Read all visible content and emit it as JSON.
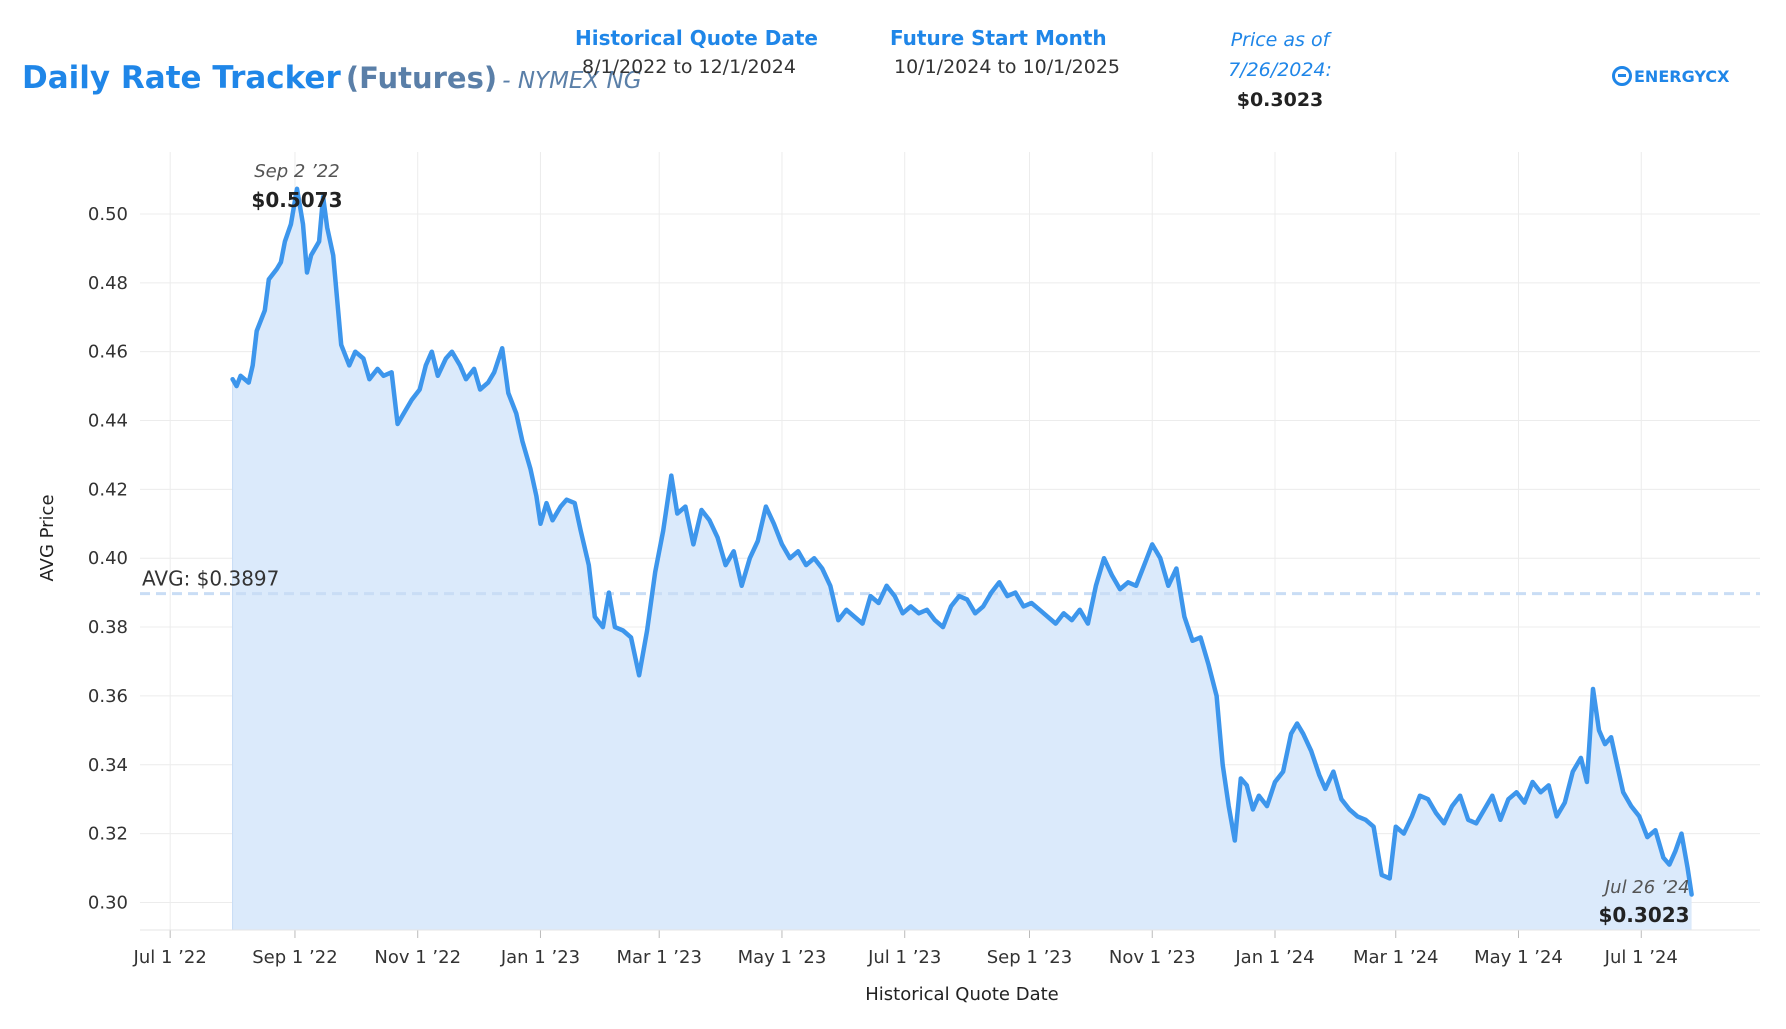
{
  "header": {
    "title_main": "Daily Rate Tracker",
    "title_sub": "(Futures)",
    "title_tail": "- NYMEX NG",
    "historical_label": "Historical Quote Date",
    "historical_value": "8/1/2022 to 12/1/2024",
    "future_label": "Future Start Month",
    "future_value": "10/1/2024 to 10/1/2025",
    "price_label_line1": "Price as of",
    "price_label_line2": "7/26/2024:",
    "price_value": "$0.3023",
    "logo_text": "ENERGYCX"
  },
  "colors": {
    "line": "#3d96ec",
    "area": "#dbeafb",
    "avg_line": "#c9ddf5",
    "accent": "#1f86e8"
  },
  "chart_data": {
    "type": "area",
    "xlabel": "Historical Quote Date",
    "ylabel": "AVG Price",
    "x_ticks": [
      {
        "date": "2022-07-01",
        "label": "Jul 1 ’22"
      },
      {
        "date": "2022-09-01",
        "label": "Sep 1 ’22"
      },
      {
        "date": "2022-11-01",
        "label": "Nov 1 ’22"
      },
      {
        "date": "2023-01-01",
        "label": "Jan 1 ’23"
      },
      {
        "date": "2023-03-01",
        "label": "Mar 1 ’23"
      },
      {
        "date": "2023-05-01",
        "label": "May 1 ’23"
      },
      {
        "date": "2023-07-01",
        "label": "Jul 1 ’23"
      },
      {
        "date": "2023-09-01",
        "label": "Sep 1 ’23"
      },
      {
        "date": "2023-11-01",
        "label": "Nov 1 ’23"
      },
      {
        "date": "2024-01-01",
        "label": "Jan 1 ’24"
      },
      {
        "date": "2024-03-01",
        "label": "Mar 1 ’24"
      },
      {
        "date": "2024-05-01",
        "label": "May 1 ’24"
      },
      {
        "date": "2024-07-01",
        "label": "Jul 1 ’24"
      }
    ],
    "xlim": [
      "2022-06-16",
      "2024-08-29"
    ],
    "y_ticks": [
      0.3,
      0.32,
      0.34,
      0.36,
      0.38,
      0.4,
      0.42,
      0.44,
      0.46,
      0.48,
      0.5
    ],
    "y_tick_labels": [
      "0.30",
      "0.32",
      "0.34",
      "0.36",
      "0.38",
      "0.40",
      "0.42",
      "0.44",
      "0.46",
      "0.48",
      "0.50"
    ],
    "ylim": [
      0.292,
      0.518
    ],
    "avg": {
      "value": 0.3897,
      "label": "AVG: $0.3897"
    },
    "grid": true,
    "max_annotation": {
      "date": "2022-09-02",
      "date_label": "Sep 2 ’22",
      "value_label": "$0.5073"
    },
    "last_annotation": {
      "date": "2024-07-26",
      "date_label": "Jul 26 ’24",
      "value_label": "$0.3023"
    },
    "points": [
      [
        "2022-08-01",
        0.452
      ],
      [
        "2022-08-03",
        0.45
      ],
      [
        "2022-08-05",
        0.453
      ],
      [
        "2022-08-09",
        0.451
      ],
      [
        "2022-08-11",
        0.456
      ],
      [
        "2022-08-13",
        0.466
      ],
      [
        "2022-08-17",
        0.472
      ],
      [
        "2022-08-19",
        0.481
      ],
      [
        "2022-08-23",
        0.484
      ],
      [
        "2022-08-25",
        0.486
      ],
      [
        "2022-08-27",
        0.492
      ],
      [
        "2022-08-30",
        0.497
      ],
      [
        "2022-09-02",
        0.5073
      ],
      [
        "2022-09-05",
        0.497
      ],
      [
        "2022-09-07",
        0.483
      ],
      [
        "2022-09-09",
        0.488
      ],
      [
        "2022-09-13",
        0.492
      ],
      [
        "2022-09-15",
        0.505
      ],
      [
        "2022-09-17",
        0.496
      ],
      [
        "2022-09-20",
        0.488
      ],
      [
        "2022-09-24",
        0.462
      ],
      [
        "2022-09-28",
        0.456
      ],
      [
        "2022-10-01",
        0.46
      ],
      [
        "2022-10-05",
        0.458
      ],
      [
        "2022-10-08",
        0.452
      ],
      [
        "2022-10-12",
        0.455
      ],
      [
        "2022-10-15",
        0.453
      ],
      [
        "2022-10-19",
        0.454
      ],
      [
        "2022-10-22",
        0.439
      ],
      [
        "2022-10-26",
        0.443
      ],
      [
        "2022-10-29",
        0.446
      ],
      [
        "2022-11-02",
        0.449
      ],
      [
        "2022-11-05",
        0.456
      ],
      [
        "2022-11-08",
        0.46
      ],
      [
        "2022-11-11",
        0.453
      ],
      [
        "2022-11-15",
        0.458
      ],
      [
        "2022-11-18",
        0.46
      ],
      [
        "2022-11-22",
        0.456
      ],
      [
        "2022-11-25",
        0.452
      ],
      [
        "2022-11-29",
        0.455
      ],
      [
        "2022-12-02",
        0.449
      ],
      [
        "2022-12-06",
        0.451
      ],
      [
        "2022-12-09",
        0.454
      ],
      [
        "2022-12-13",
        0.461
      ],
      [
        "2022-12-16",
        0.448
      ],
      [
        "2022-12-20",
        0.442
      ],
      [
        "2022-12-23",
        0.434
      ],
      [
        "2022-12-27",
        0.426
      ],
      [
        "2022-12-30",
        0.418
      ],
      [
        "2023-01-01",
        0.41
      ],
      [
        "2023-01-04",
        0.416
      ],
      [
        "2023-01-07",
        0.411
      ],
      [
        "2023-01-11",
        0.415
      ],
      [
        "2023-01-14",
        0.417
      ],
      [
        "2023-01-18",
        0.416
      ],
      [
        "2023-01-21",
        0.408
      ],
      [
        "2023-01-25",
        0.398
      ],
      [
        "2023-01-28",
        0.383
      ],
      [
        "2023-02-01",
        0.38
      ],
      [
        "2023-02-04",
        0.39
      ],
      [
        "2023-02-07",
        0.38
      ],
      [
        "2023-02-11",
        0.379
      ],
      [
        "2023-02-15",
        0.377
      ],
      [
        "2023-02-19",
        0.366
      ],
      [
        "2023-02-23",
        0.379
      ],
      [
        "2023-02-27",
        0.396
      ],
      [
        "2023-03-03",
        0.408
      ],
      [
        "2023-03-07",
        0.424
      ],
      [
        "2023-03-10",
        0.413
      ],
      [
        "2023-03-14",
        0.415
      ],
      [
        "2023-03-18",
        0.404
      ],
      [
        "2023-03-22",
        0.414
      ],
      [
        "2023-03-26",
        0.411
      ],
      [
        "2023-03-30",
        0.406
      ],
      [
        "2023-04-03",
        0.398
      ],
      [
        "2023-04-07",
        0.402
      ],
      [
        "2023-04-11",
        0.392
      ],
      [
        "2023-04-15",
        0.4
      ],
      [
        "2023-04-19",
        0.405
      ],
      [
        "2023-04-23",
        0.415
      ],
      [
        "2023-04-27",
        0.41
      ],
      [
        "2023-05-01",
        0.404
      ],
      [
        "2023-05-05",
        0.4
      ],
      [
        "2023-05-09",
        0.402
      ],
      [
        "2023-05-13",
        0.398
      ],
      [
        "2023-05-17",
        0.4
      ],
      [
        "2023-05-21",
        0.397
      ],
      [
        "2023-05-25",
        0.392
      ],
      [
        "2023-05-29",
        0.382
      ],
      [
        "2023-06-02",
        0.385
      ],
      [
        "2023-06-06",
        0.383
      ],
      [
        "2023-06-10",
        0.381
      ],
      [
        "2023-06-14",
        0.389
      ],
      [
        "2023-06-18",
        0.387
      ],
      [
        "2023-06-22",
        0.392
      ],
      [
        "2023-06-26",
        0.389
      ],
      [
        "2023-06-30",
        0.384
      ],
      [
        "2023-07-04",
        0.386
      ],
      [
        "2023-07-08",
        0.384
      ],
      [
        "2023-07-12",
        0.385
      ],
      [
        "2023-07-16",
        0.382
      ],
      [
        "2023-07-20",
        0.38
      ],
      [
        "2023-07-24",
        0.386
      ],
      [
        "2023-07-28",
        0.389
      ],
      [
        "2023-08-01",
        0.388
      ],
      [
        "2023-08-05",
        0.384
      ],
      [
        "2023-08-09",
        0.386
      ],
      [
        "2023-08-13",
        0.39
      ],
      [
        "2023-08-17",
        0.393
      ],
      [
        "2023-08-21",
        0.389
      ],
      [
        "2023-08-25",
        0.39
      ],
      [
        "2023-08-29",
        0.386
      ],
      [
        "2023-09-02",
        0.387
      ],
      [
        "2023-09-06",
        0.385
      ],
      [
        "2023-09-10",
        0.383
      ],
      [
        "2023-09-14",
        0.381
      ],
      [
        "2023-09-18",
        0.384
      ],
      [
        "2023-09-22",
        0.382
      ],
      [
        "2023-09-26",
        0.385
      ],
      [
        "2023-09-30",
        0.381
      ],
      [
        "2023-10-04",
        0.392
      ],
      [
        "2023-10-08",
        0.4
      ],
      [
        "2023-10-12",
        0.395
      ],
      [
        "2023-10-16",
        0.391
      ],
      [
        "2023-10-20",
        0.393
      ],
      [
        "2023-10-24",
        0.392
      ],
      [
        "2023-10-28",
        0.398
      ],
      [
        "2023-11-01",
        0.404
      ],
      [
        "2023-11-05",
        0.4
      ],
      [
        "2023-11-09",
        0.392
      ],
      [
        "2023-11-13",
        0.397
      ],
      [
        "2023-11-17",
        0.383
      ],
      [
        "2023-11-21",
        0.376
      ],
      [
        "2023-11-25",
        0.377
      ],
      [
        "2023-11-29",
        0.369
      ],
      [
        "2023-12-03",
        0.36
      ],
      [
        "2023-12-06",
        0.34
      ],
      [
        "2023-12-09",
        0.328
      ],
      [
        "2023-12-12",
        0.318
      ],
      [
        "2023-12-15",
        0.336
      ],
      [
        "2023-12-18",
        0.334
      ],
      [
        "2023-12-21",
        0.327
      ],
      [
        "2023-12-24",
        0.331
      ],
      [
        "2023-12-28",
        0.328
      ],
      [
        "2024-01-01",
        0.335
      ],
      [
        "2024-01-05",
        0.338
      ],
      [
        "2024-01-09",
        0.349
      ],
      [
        "2024-01-12",
        0.352
      ],
      [
        "2024-01-15",
        0.349
      ],
      [
        "2024-01-19",
        0.344
      ],
      [
        "2024-01-23",
        0.337
      ],
      [
        "2024-01-26",
        0.333
      ],
      [
        "2024-01-30",
        0.338
      ],
      [
        "2024-02-03",
        0.33
      ],
      [
        "2024-02-07",
        0.327
      ],
      [
        "2024-02-11",
        0.325
      ],
      [
        "2024-02-15",
        0.324
      ],
      [
        "2024-02-19",
        0.322
      ],
      [
        "2024-02-23",
        0.308
      ],
      [
        "2024-02-27",
        0.307
      ],
      [
        "2024-03-01",
        0.322
      ],
      [
        "2024-03-05",
        0.32
      ],
      [
        "2024-03-09",
        0.325
      ],
      [
        "2024-03-13",
        0.331
      ],
      [
        "2024-03-17",
        0.33
      ],
      [
        "2024-03-21",
        0.326
      ],
      [
        "2024-03-25",
        0.323
      ],
      [
        "2024-03-29",
        0.328
      ],
      [
        "2024-04-02",
        0.331
      ],
      [
        "2024-04-06",
        0.324
      ],
      [
        "2024-04-10",
        0.323
      ],
      [
        "2024-04-14",
        0.327
      ],
      [
        "2024-04-18",
        0.331
      ],
      [
        "2024-04-22",
        0.324
      ],
      [
        "2024-04-26",
        0.33
      ],
      [
        "2024-04-30",
        0.332
      ],
      [
        "2024-05-04",
        0.329
      ],
      [
        "2024-05-08",
        0.335
      ],
      [
        "2024-05-12",
        0.332
      ],
      [
        "2024-05-16",
        0.334
      ],
      [
        "2024-05-20",
        0.325
      ],
      [
        "2024-05-24",
        0.329
      ],
      [
        "2024-05-28",
        0.338
      ],
      [
        "2024-06-01",
        0.342
      ],
      [
        "2024-06-04",
        0.335
      ],
      [
        "2024-06-07",
        0.362
      ],
      [
        "2024-06-10",
        0.35
      ],
      [
        "2024-06-13",
        0.346
      ],
      [
        "2024-06-16",
        0.348
      ],
      [
        "2024-06-19",
        0.34
      ],
      [
        "2024-06-22",
        0.332
      ],
      [
        "2024-06-26",
        0.328
      ],
      [
        "2024-06-30",
        0.325
      ],
      [
        "2024-07-04",
        0.319
      ],
      [
        "2024-07-08",
        0.321
      ],
      [
        "2024-07-12",
        0.313
      ],
      [
        "2024-07-15",
        0.311
      ],
      [
        "2024-07-18",
        0.315
      ],
      [
        "2024-07-21",
        0.32
      ],
      [
        "2024-07-24",
        0.31
      ],
      [
        "2024-07-26",
        0.3023
      ]
    ]
  }
}
